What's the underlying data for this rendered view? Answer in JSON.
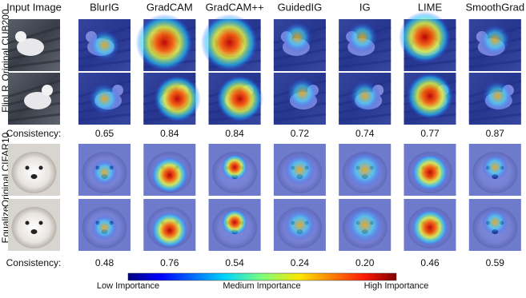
{
  "columns": [
    "Input Image",
    "BlurIG",
    "GradCAM",
    "GradCAM++",
    "GuidedIG",
    "IG",
    "LIME",
    "SmoothGrad"
  ],
  "row_labels": [
    "Original CUB200",
    "FlipLR",
    "Original CIFAR10",
    "Equalize"
  ],
  "consistency_rows": [
    {
      "label": "Consistency:",
      "values": [
        "0.65",
        "0.84",
        "0.84",
        "0.72",
        "0.74",
        "0.77",
        "0.87"
      ]
    },
    {
      "label": "Consistency:",
      "values": [
        "0.48",
        "0.76",
        "0.54",
        "0.24",
        "0.20",
        "0.46",
        "0.59"
      ]
    }
  ],
  "colorbar": {
    "low": "Low Importance",
    "medium": "Medium Importance",
    "high": "High Importance"
  }
}
